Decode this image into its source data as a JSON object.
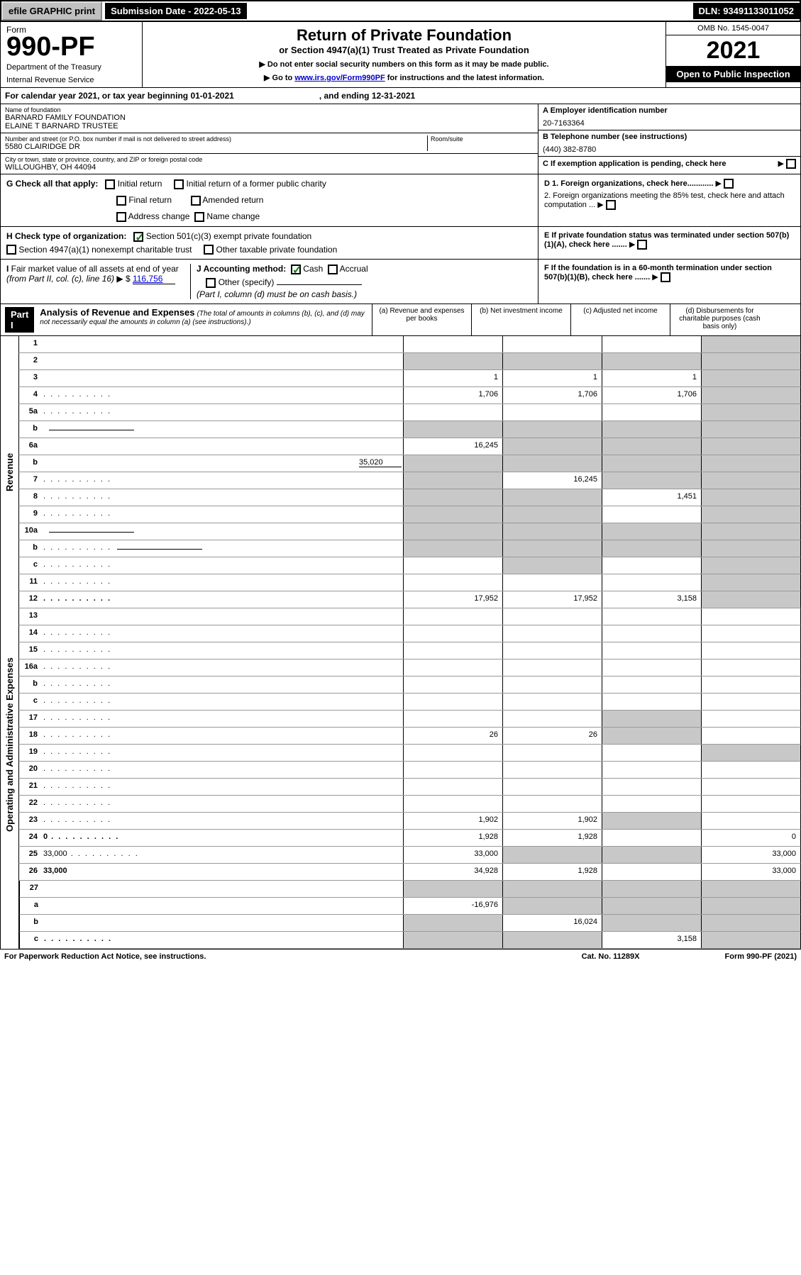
{
  "topbar": {
    "efile": "efile GRAPHIC print",
    "subdate_label": "Submission Date - ",
    "subdate": "2022-05-13",
    "dln_label": "DLN: ",
    "dln": "93491133011052"
  },
  "header": {
    "form_word": "Form",
    "form_no": "990-PF",
    "dept": "Department of the Treasury",
    "irs": "Internal Revenue Service",
    "title": "Return of Private Foundation",
    "subtitle": "or Section 4947(a)(1) Trust Treated as Private Foundation",
    "note1": "▶ Do not enter social security numbers on this form as it may be made public.",
    "note2_pre": "▶ Go to ",
    "note2_link": "www.irs.gov/Form990PF",
    "note2_post": " for instructions and the latest information.",
    "omb": "OMB No. 1545-0047",
    "year": "2021",
    "otp": "Open to Public Inspection"
  },
  "cal": {
    "text": "For calendar year 2021, or tax year beginning 01-01-2021",
    "end": ", and ending 12-31-2021"
  },
  "id": {
    "name_lbl": "Name of foundation",
    "name1": "BARNARD FAMILY FOUNDATION",
    "name2": "ELAINE T BARNARD TRUSTEE",
    "addr_lbl": "Number and street (or P.O. box number if mail is not delivered to street address)",
    "addr": "5580 CLAIRIDGE DR",
    "room_lbl": "Room/suite",
    "city_lbl": "City or town, state or province, country, and ZIP or foreign postal code",
    "city": "WILLOUGHBY, OH  44094",
    "ein_lbl": "A Employer identification number",
    "ein": "20-7163364",
    "tel_lbl": "B Telephone number (see instructions)",
    "tel": "(440) 382-8780",
    "c_lbl": "C If exemption application is pending, check here"
  },
  "g": {
    "label": "G Check all that apply:",
    "o1": "Initial return",
    "o2": "Final return",
    "o3": "Address change",
    "o4": "Initial return of a former public charity",
    "o5": "Amended return",
    "o6": "Name change"
  },
  "h": {
    "label": "H Check type of organization:",
    "o1": "Section 501(c)(3) exempt private foundation",
    "o2": "Section 4947(a)(1) nonexempt charitable trust",
    "o3": "Other taxable private foundation"
  },
  "i": {
    "label": "I Fair market value of all assets at end of year (from Part II, col. (c), line 16) ▶ $",
    "val": "116,756"
  },
  "j": {
    "label": "J Accounting method:",
    "cash": "Cash",
    "accrual": "Accrual",
    "other": "Other (specify)",
    "note": "(Part I, column (d) must be on cash basis.)"
  },
  "d": {
    "d1": "D 1. Foreign organizations, check here............",
    "d2": "2. Foreign organizations meeting the 85% test, check here and attach computation ...",
    "e": "E  If private foundation status was terminated under section 507(b)(1)(A), check here .......",
    "f": "F  If the foundation is in a 60-month termination under section 507(b)(1)(B), check here ......."
  },
  "part1": {
    "label": "Part I",
    "title": "Analysis of Revenue and Expenses",
    "sub": " (The total of amounts in columns (b), (c), and (d) may not necessarily equal the amounts in column (a) (see instructions).)",
    "col_a": "(a)  Revenue and expenses per books",
    "col_b": "(b)  Net investment income",
    "col_c": "(c)  Adjusted net income",
    "col_d": "(d)  Disbursements for charitable purposes (cash basis only)"
  },
  "sides": {
    "revenue": "Revenue",
    "expenses": "Operating and Administrative Expenses"
  },
  "rows": [
    {
      "n": "1",
      "d": "",
      "a": "",
      "b": "",
      "c": "",
      "ds": true
    },
    {
      "n": "2",
      "d": "",
      "a": "",
      "b": "",
      "c": "",
      "ds": true,
      "bold_not": true,
      "allshade": true
    },
    {
      "n": "3",
      "d": "",
      "a": "1",
      "b": "1",
      "c": "1",
      "ds": true
    },
    {
      "n": "4",
      "d": "",
      "a": "1,706",
      "b": "1,706",
      "c": "1,706",
      "ds": true,
      "dots": true
    },
    {
      "n": "5a",
      "d": "",
      "a": "",
      "b": "",
      "c": "",
      "ds": true,
      "dots": true
    },
    {
      "n": "b",
      "d": "",
      "a": "",
      "b": "",
      "c": "",
      "ds": true,
      "allshade": true,
      "ul": true
    },
    {
      "n": "6a",
      "d": "",
      "a": "16,245",
      "b": "",
      "c": "",
      "ds": true,
      "bshade": true,
      "cshade": true
    },
    {
      "n": "b",
      "d": "",
      "a": "",
      "b": "",
      "c": "",
      "ds": true,
      "allshade": true,
      "inline_val": "35,020"
    },
    {
      "n": "7",
      "d": "",
      "a": "",
      "b": "16,245",
      "c": "",
      "ds": true,
      "ashade": true,
      "cshade": true,
      "dots": true
    },
    {
      "n": "8",
      "d": "",
      "a": "",
      "b": "",
      "c": "1,451",
      "ds": true,
      "ashade": true,
      "bshade": true,
      "dots": true
    },
    {
      "n": "9",
      "d": "",
      "a": "",
      "b": "",
      "c": "",
      "ds": true,
      "ashade": true,
      "bshade": true,
      "dots": true
    },
    {
      "n": "10a",
      "d": "",
      "a": "",
      "b": "",
      "c": "",
      "ds": true,
      "allshade": true,
      "ul": true
    },
    {
      "n": "b",
      "d": "",
      "a": "",
      "b": "",
      "c": "",
      "ds": true,
      "allshade": true,
      "ul": true,
      "dots": true
    },
    {
      "n": "c",
      "d": "",
      "a": "",
      "b": "",
      "c": "",
      "ds": true,
      "bshade": true,
      "dots": true
    },
    {
      "n": "11",
      "d": "",
      "a": "",
      "b": "",
      "c": "",
      "ds": true,
      "dots": true
    },
    {
      "n": "12",
      "d": "",
      "a": "17,952",
      "b": "17,952",
      "c": "3,158",
      "ds": true,
      "bold": true,
      "dots": true
    }
  ],
  "exp_rows": [
    {
      "n": "13",
      "d": "",
      "a": "",
      "b": "",
      "c": ""
    },
    {
      "n": "14",
      "d": "",
      "a": "",
      "b": "",
      "c": "",
      "dots": true
    },
    {
      "n": "15",
      "d": "",
      "a": "",
      "b": "",
      "c": "",
      "dots": true
    },
    {
      "n": "16a",
      "d": "",
      "a": "",
      "b": "",
      "c": "",
      "dots": true
    },
    {
      "n": "b",
      "d": "",
      "a": "",
      "b": "",
      "c": "",
      "dots": true
    },
    {
      "n": "c",
      "d": "",
      "a": "",
      "b": "",
      "c": "",
      "dots": true
    },
    {
      "n": "17",
      "d": "",
      "a": "",
      "b": "",
      "c": "",
      "dots": true,
      "cshade": true
    },
    {
      "n": "18",
      "d": "",
      "a": "26",
      "b": "26",
      "c": "",
      "dots": true,
      "cshade": true
    },
    {
      "n": "19",
      "d": "",
      "a": "",
      "b": "",
      "c": "",
      "dots": true,
      "dshade": true
    },
    {
      "n": "20",
      "d": "",
      "a": "",
      "b": "",
      "c": "",
      "dots": true
    },
    {
      "n": "21",
      "d": "",
      "a": "",
      "b": "",
      "c": "",
      "dots": true
    },
    {
      "n": "22",
      "d": "",
      "a": "",
      "b": "",
      "c": "",
      "dots": true
    },
    {
      "n": "23",
      "d": "",
      "a": "1,902",
      "b": "1,902",
      "c": "",
      "dots": true,
      "cshade": true
    },
    {
      "n": "24",
      "d": "0",
      "a": "1,928",
      "b": "1,928",
      "c": "",
      "bold": true,
      "dots": true
    },
    {
      "n": "25",
      "d": "33,000",
      "a": "33,000",
      "b": "",
      "c": "",
      "dots": true,
      "bshade": true,
      "cshade": true
    },
    {
      "n": "26",
      "d": "33,000",
      "a": "34,928",
      "b": "1,928",
      "c": "",
      "bold": true
    }
  ],
  "net_rows": [
    {
      "n": "27",
      "d": "",
      "a": "",
      "b": "",
      "c": "",
      "allshade": true
    },
    {
      "n": "a",
      "d": "",
      "a": "-16,976",
      "b": "",
      "c": "",
      "bold": true,
      "bshade": true,
      "cshade": true,
      "dshade": true
    },
    {
      "n": "b",
      "d": "",
      "a": "",
      "b": "16,024",
      "c": "",
      "bold": true,
      "ashade": true,
      "cshade": true,
      "dshade": true
    },
    {
      "n": "c",
      "d": "",
      "a": "",
      "b": "",
      "c": "3,158",
      "bold": true,
      "ashade": true,
      "bshade": true,
      "dshade": true,
      "dots": true
    }
  ],
  "footer": {
    "left": "For Paperwork Reduction Act Notice, see instructions.",
    "mid": "Cat. No. 11289X",
    "right": "Form 990-PF (2021)"
  },
  "colors": {
    "shade": "#c8c8c8",
    "link": "#0000cc",
    "check": "#1a7a1a"
  }
}
